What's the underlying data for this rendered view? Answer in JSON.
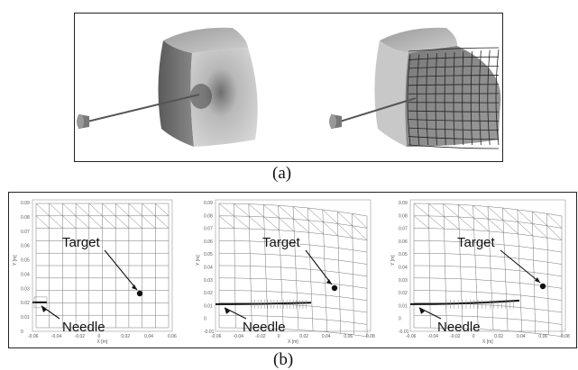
{
  "figure": {
    "caption_a": "(a)",
    "caption_b": "(b)"
  },
  "panel_b": {
    "plots": [
      {
        "target_label": "Target",
        "needle_label": "Needle",
        "xlabel": "X [m]",
        "ylabel": "Y [m]",
        "x_ticks": [
          "-0.06",
          "-0.04",
          "-0.02",
          "0",
          "0.02",
          "0.04",
          "0.06"
        ],
        "y_ticks": [
          "0.09",
          "0.08",
          "0.07",
          "0.06",
          "0.05",
          "0.04",
          "0.03",
          "0.02",
          "0.01",
          "0"
        ]
      },
      {
        "target_label": "Target",
        "needle_label": "Needle",
        "xlabel": "X [m]",
        "ylabel": "Y [m]",
        "x_ticks": [
          "-0.06",
          "-0.04",
          "-0.02",
          "0",
          "0.02",
          "0.04",
          "0.06",
          "0.08"
        ],
        "y_ticks": [
          "0.09",
          "0.08",
          "0.07",
          "0.06",
          "0.05",
          "0.04",
          "0.03",
          "0.02",
          "0.01",
          "0",
          "-0.01"
        ]
      },
      {
        "target_label": "Target",
        "needle_label": "Needle",
        "xlabel": "X [m]",
        "ylabel": "Y [m]",
        "x_ticks": [
          "-0.06",
          "-0.04",
          "-0.02",
          "0",
          "0.02",
          "0.04",
          "0.06",
          "0.08"
        ],
        "y_ticks": [
          "0.09",
          "0.08",
          "0.07",
          "0.06",
          "0.05",
          "0.04",
          "0.03",
          "0.02",
          "0.01",
          "0",
          "-0.01"
        ]
      }
    ]
  }
}
